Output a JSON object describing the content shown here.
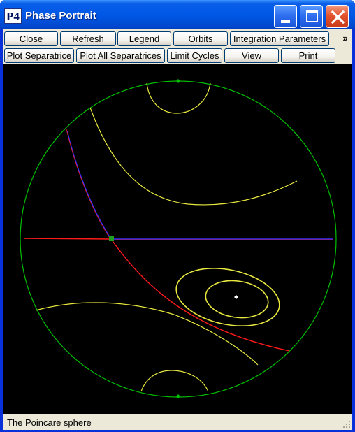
{
  "window": {
    "icon_text": "P4",
    "title": "Phase Portrait"
  },
  "toolbar_row1": [
    {
      "label": "Close",
      "name": "close-button"
    },
    {
      "label": "Refresh",
      "name": "refresh-button"
    },
    {
      "label": "Legend",
      "name": "legend-button"
    },
    {
      "label": "Orbits",
      "name": "orbits-button"
    },
    {
      "label": "Integration Parameters",
      "name": "integration-parameters-button"
    }
  ],
  "toolbar_more": "»",
  "toolbar_row2": [
    {
      "label": "Plot Separatrice",
      "name": "plot-separatrice-button"
    },
    {
      "label": "Plot All Separatrices",
      "name": "plot-all-separatrices-button"
    },
    {
      "label": "Limit Cycles",
      "name": "limit-cycles-button"
    },
    {
      "label": "View",
      "name": "view-button"
    },
    {
      "label": "Print",
      "name": "print-button"
    }
  ],
  "status": {
    "text": "The Poincare sphere"
  },
  "colors": {
    "sphere_boundary": "#00c000",
    "orbit": "#e8e840",
    "unstable_separatrix": "#ff1a1a",
    "stable_separatrix": "#3030ff",
    "saddle": "#20a020",
    "center": "#ffffff",
    "node_at_infinity": "#00c000"
  },
  "icons": {
    "minimize": "minimize-icon",
    "maximize": "maximize-icon",
    "close": "close-x-icon",
    "resize": "resize-grip-icon"
  }
}
